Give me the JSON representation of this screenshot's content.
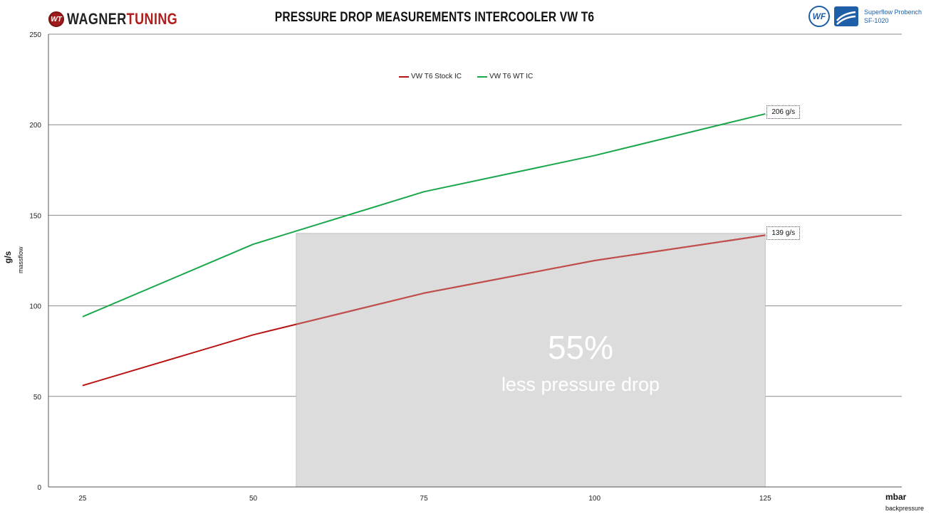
{
  "header": {
    "title": "PRESSURE DROP MEASUREMENTS INTERCOOLER VW T6",
    "logo_part1": "WAGNER",
    "logo_part2": "TUNING",
    "logo_badge": "WT",
    "bench_badge": "WF",
    "bench_line1": "Superflow Probench",
    "bench_line2": "SF-1020"
  },
  "overlay": {
    "percent": "55%",
    "text": "less pressure drop"
  },
  "callouts": {
    "wt": "206 g/s",
    "stock": "139 g/s"
  },
  "chart_data": {
    "type": "line",
    "title": "PRESSURE DROP MEASUREMENTS INTERCOOLER VW T6",
    "xlabel": "mbar",
    "xlabel_sub": "backpressure",
    "ylabel": "g/s",
    "ylabel_sub": "massflow",
    "x": [
      25,
      50,
      75,
      100,
      125
    ],
    "x_ticks": [
      "25",
      "50",
      "75",
      "100",
      "125"
    ],
    "ylim": [
      0,
      250
    ],
    "y_ticks": [
      "0",
      "50",
      "100",
      "150",
      "200",
      "250"
    ],
    "grid": true,
    "legend_placement": "top-center",
    "series": [
      {
        "name": "VW T6 Stock IC",
        "color": "#b81414",
        "values": [
          56,
          84,
          107,
          125,
          139
        ]
      },
      {
        "name": "VW T6 WT IC",
        "color": "#1aa64b",
        "values": [
          94,
          134,
          163,
          183,
          206
        ]
      }
    ],
    "shaded_region": {
      "x_start": 56.3,
      "x_end": 125,
      "y_top": 140,
      "color": "#dcdcdc"
    }
  }
}
